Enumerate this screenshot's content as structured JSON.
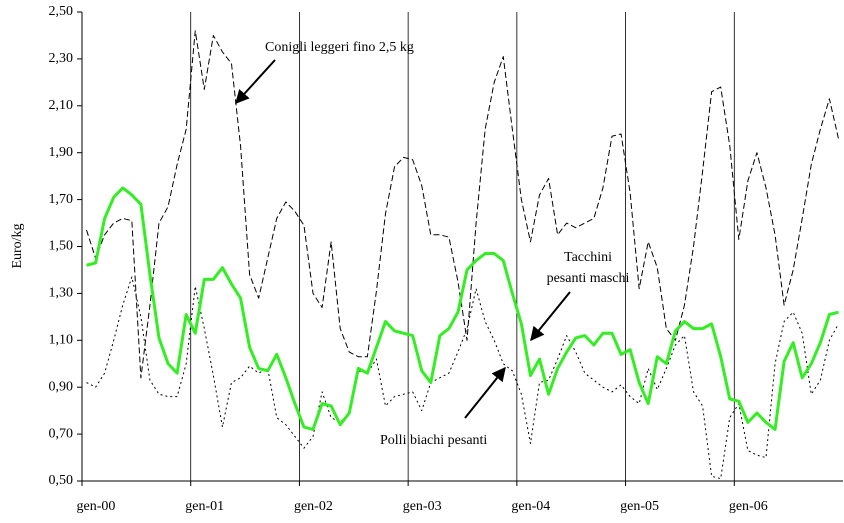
{
  "chart_data": {
    "type": "line",
    "y_label": "Euro/kg",
    "categories": [
      "gen-00",
      null,
      null,
      null,
      null,
      null,
      null,
      null,
      null,
      null,
      null,
      null,
      "gen-01",
      null,
      null,
      null,
      null,
      null,
      null,
      null,
      null,
      null,
      null,
      null,
      "gen-02",
      null,
      null,
      null,
      null,
      null,
      null,
      null,
      null,
      null,
      null,
      null,
      "gen-03",
      null,
      null,
      null,
      null,
      null,
      null,
      null,
      null,
      null,
      null,
      null,
      "gen-04",
      null,
      null,
      null,
      null,
      null,
      null,
      null,
      null,
      null,
      null,
      null,
      "gen-05",
      null,
      null,
      null,
      null,
      null,
      null,
      null,
      null,
      null,
      null,
      null,
      "gen-06",
      null,
      null,
      null,
      null,
      null,
      null,
      null,
      null,
      null,
      null,
      null
    ],
    "ylim": [
      0.5,
      2.5
    ],
    "yticks": [
      {
        "value": 0.5,
        "label": "0,50"
      },
      {
        "value": 0.7,
        "label": "0,70"
      },
      {
        "value": 0.9,
        "label": "0,90"
      },
      {
        "value": 1.1,
        "label": "1,10"
      },
      {
        "value": 1.3,
        "label": "1,30"
      },
      {
        "value": 1.5,
        "label": "1,50"
      },
      {
        "value": 1.7,
        "label": "1,70"
      },
      {
        "value": 1.9,
        "label": "1,90"
      },
      {
        "value": 2.1,
        "label": "2,10"
      },
      {
        "value": 2.3,
        "label": "2,30"
      },
      {
        "value": 2.5,
        "label": "2,50"
      }
    ],
    "vertical_grid": true,
    "annotations": [
      "Conigli leggeri fino 2,5 kg",
      "Tacchini",
      "pesanti maschi",
      "Polli biachi pesanti"
    ],
    "series": [
      {
        "color": "#000000",
        "style": "dashed",
        "width": 1,
        "values": [
          1.57,
          1.45,
          1.55,
          1.6,
          1.62,
          1.61,
          0.94,
          1.25,
          1.6,
          1.67,
          1.85,
          2.0,
          2.42,
          2.17,
          2.4,
          2.33,
          2.28,
          1.93,
          1.38,
          1.28,
          1.45,
          1.62,
          1.69,
          1.65,
          1.59,
          1.3,
          1.24,
          1.52,
          1.15,
          1.05,
          1.03,
          1.03,
          1.31,
          1.64,
          1.84,
          1.88,
          1.87,
          1.76,
          1.55,
          1.55,
          1.54,
          1.35,
          1.1,
          1.6,
          2.0,
          2.2,
          2.31,
          2.0,
          1.7,
          1.52,
          1.72,
          1.79,
          1.55,
          1.6,
          1.58,
          1.6,
          1.62,
          1.75,
          1.97,
          1.98,
          1.73,
          1.32,
          1.52,
          1.41,
          1.15,
          1.1,
          1.25,
          1.5,
          1.82,
          2.16,
          2.18,
          1.93,
          1.53,
          1.78,
          1.9,
          1.75,
          1.55,
          1.25,
          1.4,
          1.62,
          1.85,
          2.0,
          2.13,
          1.96
        ]
      },
      {
        "color": "#000000",
        "style": "dotted",
        "width": 1,
        "values": [
          0.92,
          0.9,
          0.96,
          1.1,
          1.25,
          1.37,
          1.2,
          0.93,
          0.87,
          0.86,
          0.86,
          1.0,
          1.33,
          1.15,
          0.95,
          0.73,
          0.92,
          0.94,
          0.99,
          0.96,
          0.98,
          0.77,
          0.74,
          0.69,
          0.64,
          0.69,
          0.88,
          0.77,
          0.75,
          0.79,
          0.97,
          0.96,
          1.02,
          0.82,
          0.86,
          0.87,
          0.88,
          0.8,
          0.92,
          0.94,
          0.96,
          1.05,
          1.15,
          1.32,
          1.18,
          1.1,
          1.0,
          0.97,
          0.87,
          0.66,
          0.92,
          0.93,
          1.02,
          1.12,
          1.05,
          0.96,
          0.93,
          0.9,
          0.88,
          0.91,
          0.86,
          0.83,
          0.98,
          0.89,
          0.98,
          1.08,
          1.12,
          0.88,
          0.82,
          0.52,
          0.51,
          0.77,
          0.83,
          0.63,
          0.61,
          0.6,
          1.0,
          1.18,
          1.22,
          1.13,
          0.87,
          0.93,
          1.1,
          1.17
        ]
      },
      {
        "color": "#33ee22",
        "style": "solid",
        "width": 3,
        "values": [
          1.42,
          1.43,
          1.62,
          1.71,
          1.75,
          1.72,
          1.68,
          1.38,
          1.11,
          1.0,
          0.96,
          1.21,
          1.13,
          1.36,
          1.36,
          1.41,
          1.34,
          1.28,
          1.07,
          0.98,
          0.97,
          1.04,
          0.94,
          0.83,
          0.73,
          0.72,
          0.83,
          0.82,
          0.74,
          0.79,
          0.98,
          0.96,
          1.07,
          1.18,
          1.14,
          1.13,
          1.12,
          0.97,
          0.92,
          1.12,
          1.15,
          1.22,
          1.4,
          1.44,
          1.47,
          1.47,
          1.44,
          1.3,
          1.17,
          0.95,
          1.02,
          0.87,
          0.98,
          1.05,
          1.11,
          1.12,
          1.08,
          1.13,
          1.13,
          1.04,
          1.06,
          0.92,
          0.83,
          1.03,
          1.0,
          1.14,
          1.18,
          1.15,
          1.15,
          1.17,
          1.03,
          0.85,
          0.84,
          0.75,
          0.79,
          0.75,
          0.72,
          1.01,
          1.09,
          0.94,
          1.0,
          1.09,
          1.21,
          1.22
        ]
      }
    ]
  }
}
